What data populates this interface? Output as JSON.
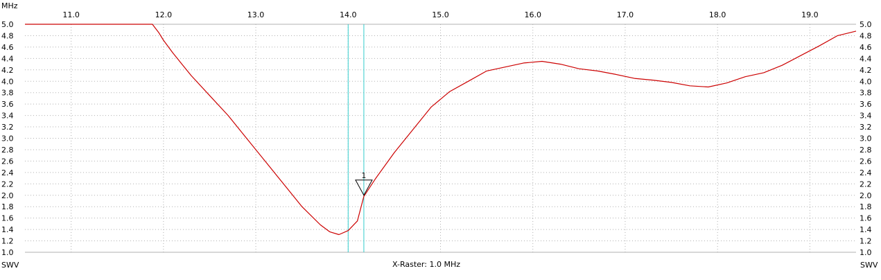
{
  "chart_data": {
    "type": "line",
    "x_unit_label": "MHz",
    "y_label_left": "SWV",
    "y_label_right": "SWV",
    "raster_label": "X-Raster: 1.0 MHz",
    "xlim": [
      10.5,
      19.5
    ],
    "ylim": [
      1.0,
      5.0
    ],
    "x_ticks": [
      11.0,
      12.0,
      13.0,
      14.0,
      15.0,
      16.0,
      17.0,
      18.0,
      19.0
    ],
    "x_tick_labels": [
      "11.0",
      "12.0",
      "13.0",
      "14.0",
      "15.0",
      "16.0",
      "17.0",
      "18.0",
      "19.0"
    ],
    "y_ticks": [
      1.0,
      1.2,
      1.4,
      1.6,
      1.8,
      2.0,
      2.2,
      2.4,
      2.6,
      2.8,
      3.0,
      3.2,
      3.4,
      3.6,
      3.8,
      4.0,
      4.2,
      4.4,
      4.6,
      4.8,
      5.0
    ],
    "y_tick_labels": [
      "1.0",
      "1.2",
      "1.4",
      "1.6",
      "1.8",
      "2.0",
      "2.2",
      "2.4",
      "2.6",
      "2.8",
      "3.0",
      "3.2",
      "3.4",
      "3.6",
      "3.8",
      "4.0",
      "4.2",
      "4.4",
      "4.6",
      "4.8",
      "5.0"
    ],
    "grid": true,
    "cursor_lines_mhz": [
      14.0,
      14.17
    ],
    "marker": {
      "label": "1",
      "x": 14.17,
      "y": 2.0
    },
    "colors": {
      "trace": "#cc0000",
      "cursor": "#33cccc",
      "grid": "#b0b0b0",
      "axis": "#000000"
    },
    "series": [
      {
        "x": [
          10.5,
          11.0,
          11.5,
          11.88,
          11.95,
          12.0,
          12.1,
          12.2,
          12.3,
          12.5,
          12.7,
          12.9,
          13.1,
          13.3,
          13.5,
          13.7,
          13.8,
          13.9,
          14.0,
          14.1,
          14.17,
          14.3,
          14.5,
          14.7,
          14.9,
          15.1,
          15.3,
          15.5,
          15.7,
          15.9,
          16.1,
          16.3,
          16.5,
          16.7,
          16.9,
          17.1,
          17.3,
          17.5,
          17.7,
          17.9,
          18.1,
          18.3,
          18.5,
          18.7,
          18.9,
          19.1,
          19.3,
          19.5
        ],
        "y": [
          5.0,
          5.0,
          5.0,
          5.0,
          4.85,
          4.72,
          4.5,
          4.3,
          4.1,
          3.75,
          3.4,
          3.0,
          2.6,
          2.2,
          1.8,
          1.48,
          1.36,
          1.31,
          1.38,
          1.55,
          1.98,
          2.3,
          2.75,
          3.15,
          3.55,
          3.82,
          4.0,
          4.18,
          4.25,
          4.32,
          4.35,
          4.3,
          4.22,
          4.18,
          4.12,
          4.05,
          4.02,
          3.98,
          3.92,
          3.9,
          3.97,
          4.08,
          4.15,
          4.28,
          4.45,
          4.62,
          4.8,
          4.88
        ]
      }
    ]
  }
}
